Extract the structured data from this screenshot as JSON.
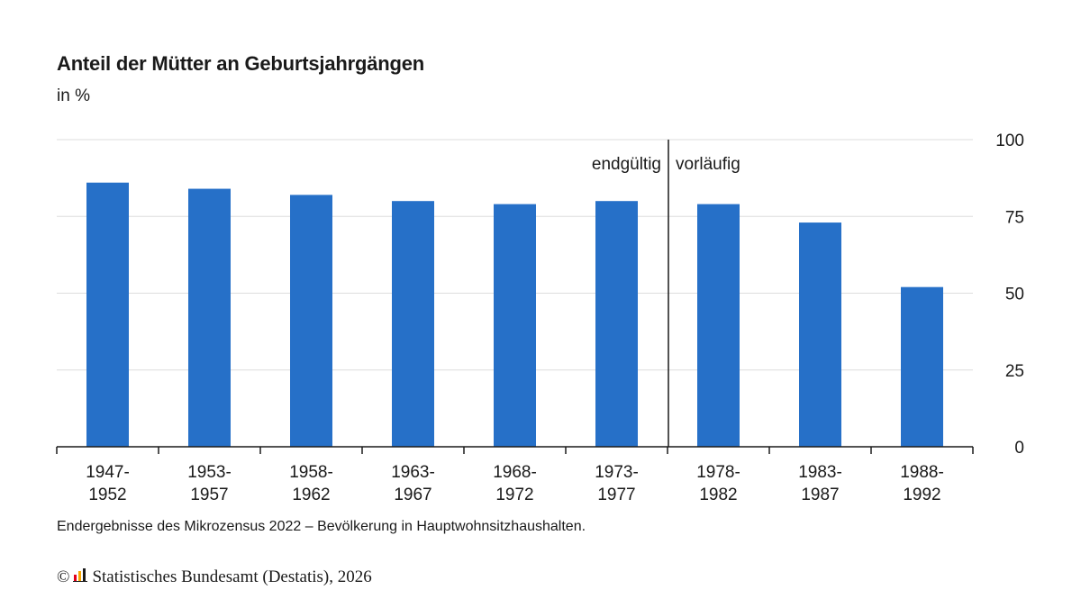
{
  "chart_data": {
    "type": "bar",
    "title": "Anteil der Mütter an Geburtsjahrgängen",
    "subtitle": "in %",
    "categories": [
      "1947-1952",
      "1953-1957",
      "1958-1962",
      "1963-1967",
      "1968-1972",
      "1973-1977",
      "1978-1982",
      "1983-1987",
      "1988-1992"
    ],
    "category_lines": [
      [
        "1947-",
        "1952"
      ],
      [
        "1953-",
        "1957"
      ],
      [
        "1958-",
        "1962"
      ],
      [
        "1963-",
        "1967"
      ],
      [
        "1968-",
        "1972"
      ],
      [
        "1973-",
        "1977"
      ],
      [
        "1978-",
        "1982"
      ],
      [
        "1983-",
        "1987"
      ],
      [
        "1988-",
        "1992"
      ]
    ],
    "values": [
      86,
      84,
      82,
      80,
      79,
      80,
      79,
      73,
      52
    ],
    "ylim": [
      0,
      100
    ],
    "yticks": [
      0,
      25,
      50,
      75,
      100
    ],
    "y_axis_side": "right",
    "grid": true,
    "colors": {
      "bar": "#2670c8",
      "grid": "#dddddd",
      "axis": "#1a1a1a"
    },
    "divider": {
      "after_category_index": 5,
      "left_label": "endgültig",
      "right_label": "vorläufig"
    }
  },
  "footnote": "Endergebnisse des Mikrozensus 2022 – Bevölkerung in Hauptwohnsitzhaushalten.",
  "source": {
    "copyright": "©",
    "text": "Statistisches Bundesamt (Destatis), 2026",
    "logo_icon": "destatis-logo-icon"
  }
}
